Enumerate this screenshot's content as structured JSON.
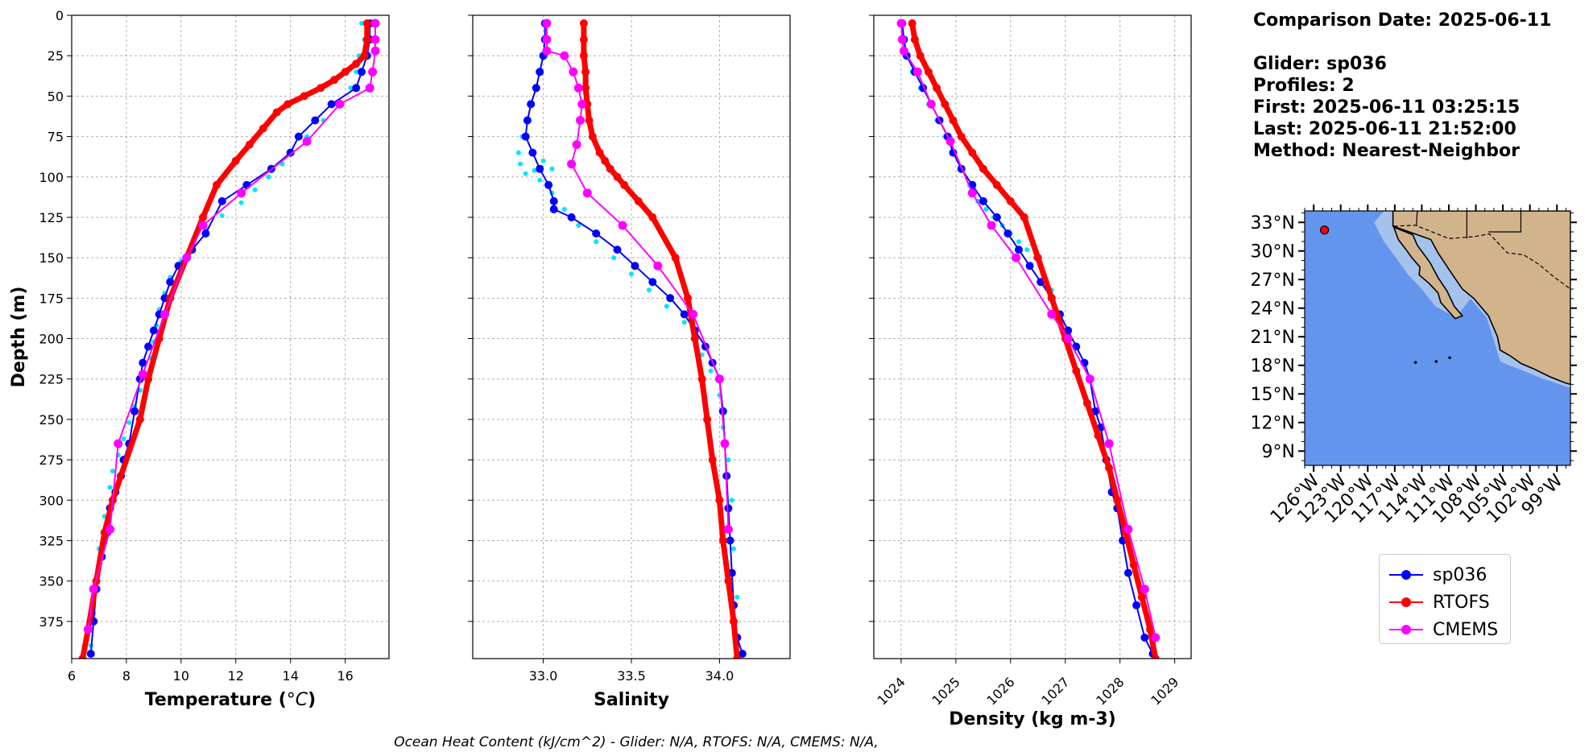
{
  "colors": {
    "glider": "#0000ff",
    "glider_raw": "#00e5ff",
    "rtofs": "#ff0000",
    "cmems": "#ff00ff",
    "ocean": "#6495ed",
    "shelf": "#a4c2ec",
    "land": "#d2b48c",
    "grid": "#b0b0b0"
  },
  "info": {
    "comparison_date": "Comparison Date: 2025-06-11",
    "glider": "Glider: sp036",
    "profiles": "Profiles: 2",
    "first": "First: 2025-06-11 03:25:15",
    "last": "Last: 2025-06-11 21:52:00",
    "method": "Method: Nearest-Neighbor"
  },
  "legend": [
    {
      "label": "sp036",
      "color": "#0000ff"
    },
    {
      "label": "RTOFS",
      "color": "#ff0000"
    },
    {
      "label": "CMEMS",
      "color": "#ff00ff"
    }
  ],
  "footnote": "Ocean Heat Content (kJ/cm^2) - Glider: N/A,  RTOFS: N/A,  CMEMS: N/A,",
  "chart_data": [
    {
      "type": "line",
      "xlabel": "Temperature (°C)",
      "ylabel": "Depth (m)",
      "xlim": [
        6,
        17.6
      ],
      "ylim": [
        0,
        398
      ],
      "y_inverted": true,
      "xticks": [
        6,
        8,
        10,
        12,
        14,
        16
      ],
      "yticks": [
        0,
        25,
        50,
        75,
        100,
        125,
        150,
        175,
        200,
        225,
        250,
        275,
        300,
        325,
        350,
        375
      ],
      "xtick_labels": [
        "6",
        "8",
        "10",
        "12",
        "14",
        "16"
      ],
      "grid": true,
      "series": [
        {
          "name": "glider_raw",
          "style": "dots",
          "x": [
            16.6,
            16.7,
            16.5,
            16.4,
            16.2,
            15.8,
            15.2,
            14.6,
            14.0,
            13.7,
            13.2,
            12.7,
            12.2,
            11.5,
            10.9,
            10.4,
            10.0,
            9.6,
            9.4,
            9.2,
            9.1,
            9.0,
            8.9,
            8.7,
            8.5,
            8.3,
            8.1,
            7.9,
            7.7,
            7.5,
            7.4,
            7.2,
            7.0,
            6.9,
            6.8,
            6.7
          ],
          "y": [
            5,
            15,
            25,
            35,
            45,
            55,
            65,
            75,
            85,
            92,
            100,
            108,
            116,
            124,
            132,
            142,
            152,
            162,
            172,
            182,
            192,
            202,
            212,
            222,
            232,
            242,
            252,
            262,
            272,
            282,
            292,
            310,
            330,
            350,
            370,
            390
          ]
        },
        {
          "name": "sp036",
          "style": "line-markers",
          "x": [
            16.9,
            16.9,
            16.8,
            16.6,
            16.4,
            15.5,
            14.9,
            14.3,
            14.0,
            13.3,
            12.4,
            11.5,
            10.9,
            10.4,
            9.9,
            9.6,
            9.4,
            9.2,
            9.0,
            8.8,
            8.6,
            8.5,
            8.3,
            8.1,
            7.9,
            7.8,
            7.6,
            7.4,
            7.3,
            7.1,
            6.9,
            6.8,
            6.7
          ],
          "y": [
            5,
            15,
            25,
            35,
            45,
            55,
            65,
            75,
            85,
            95,
            105,
            115,
            135,
            145,
            155,
            165,
            175,
            185,
            195,
            205,
            215,
            225,
            245,
            265,
            275,
            285,
            295,
            305,
            320,
            335,
            355,
            375,
            395
          ]
        },
        {
          "name": "RTOFS",
          "style": "thick-line-markers",
          "x": [
            16.8,
            16.8,
            16.7,
            16.4,
            16.0,
            15.6,
            15.1,
            14.5,
            13.9,
            13.5,
            13.0,
            12.5,
            12.0,
            11.3,
            10.8,
            10.2,
            9.6,
            9.2,
            8.8,
            8.5,
            7.5,
            7.2,
            6.9,
            6.6,
            6.4
          ],
          "y": [
            5,
            15,
            25,
            30,
            35,
            40,
            45,
            50,
            55,
            60,
            70,
            80,
            90,
            105,
            125,
            150,
            175,
            200,
            225,
            250,
            300,
            320,
            350,
            380,
            398
          ]
        },
        {
          "name": "CMEMS",
          "style": "line-markers",
          "x": [
            17.1,
            17.1,
            17.1,
            17.0,
            16.9,
            15.8,
            14.6,
            12.2,
            10.8,
            10.2,
            9.4,
            8.6,
            7.7,
            7.4,
            6.8,
            6.6
          ],
          "y": [
            5,
            15,
            22,
            35,
            45,
            55,
            78,
            110,
            130,
            150,
            185,
            222,
            265,
            318,
            355,
            380
          ]
        }
      ]
    },
    {
      "type": "line",
      "xlabel": "Salinity",
      "xlim": [
        32.6,
        34.4
      ],
      "ylim": [
        0,
        398
      ],
      "y_inverted": true,
      "xticks": [
        33.0,
        33.5,
        34.0
      ],
      "xtick_labels": [
        "33.0",
        "33.5",
        "34.0"
      ],
      "grid": true,
      "series": [
        {
          "name": "glider_raw",
          "style": "dots",
          "x": [
            33.0,
            33.0,
            32.99,
            32.97,
            32.95,
            32.93,
            32.91,
            32.88,
            32.86,
            32.87,
            32.9,
            32.95,
            33.0,
            33.05,
            32.98,
            33.05,
            33.12,
            33.2,
            33.3,
            33.4,
            33.5,
            33.6,
            33.7,
            33.8,
            33.85,
            33.9,
            33.95,
            34.0,
            34.02,
            34.05,
            34.07,
            34.08,
            34.1,
            34.1
          ],
          "y": [
            5,
            15,
            25,
            35,
            45,
            55,
            65,
            75,
            85,
            92,
            98,
            96,
            90,
            95,
            102,
            110,
            120,
            130,
            140,
            150,
            160,
            170,
            180,
            190,
            200,
            210,
            220,
            235,
            255,
            275,
            300,
            330,
            360,
            390
          ]
        },
        {
          "name": "sp036",
          "style": "line-markers",
          "x": [
            33.01,
            33.01,
            33.0,
            32.98,
            32.96,
            32.93,
            32.91,
            32.9,
            32.94,
            32.98,
            33.03,
            33.06,
            33.06,
            33.16,
            33.3,
            33.42,
            33.52,
            33.62,
            33.72,
            33.8,
            33.86,
            33.92,
            33.96,
            34.0,
            34.02,
            34.03,
            34.04,
            34.05,
            34.06,
            34.07,
            34.08,
            34.1,
            34.13
          ],
          "y": [
            5,
            15,
            25,
            35,
            45,
            55,
            65,
            75,
            85,
            95,
            105,
            115,
            120,
            125,
            135,
            145,
            155,
            165,
            175,
            185,
            195,
            205,
            215,
            225,
            245,
            265,
            285,
            305,
            325,
            345,
            365,
            385,
            395
          ]
        },
        {
          "name": "RTOFS",
          "style": "thick-line-markers",
          "x": [
            33.23,
            33.23,
            33.23,
            33.24,
            33.24,
            33.25,
            33.26,
            33.28,
            33.32,
            33.35,
            33.38,
            33.42,
            33.46,
            33.54,
            33.62,
            33.75,
            33.82,
            33.86,
            33.9,
            33.93,
            33.96,
            34.0,
            34.02,
            34.05,
            34.08,
            34.1
          ],
          "y": [
            5,
            15,
            25,
            35,
            45,
            55,
            65,
            75,
            85,
            90,
            95,
            100,
            105,
            115,
            125,
            150,
            175,
            200,
            225,
            250,
            275,
            300,
            325,
            350,
            375,
            398
          ]
        },
        {
          "name": "CMEMS",
          "style": "line-markers",
          "x": [
            33.02,
            33.02,
            33.02,
            33.12,
            33.17,
            33.2,
            33.22,
            33.21,
            33.19,
            33.16,
            33.25,
            33.45,
            33.65,
            33.85,
            34.0,
            34.03,
            34.05
          ],
          "y": [
            5,
            15,
            22,
            25,
            35,
            45,
            55,
            65,
            80,
            92,
            110,
            130,
            155,
            185,
            225,
            265,
            318
          ]
        }
      ]
    },
    {
      "type": "line",
      "xlabel": "Density (kg m-3)",
      "xlim": [
        1023.5,
        1029.3
      ],
      "ylim": [
        0,
        398
      ],
      "y_inverted": true,
      "xticks": [
        1024,
        1025,
        1026,
        1027,
        1028,
        1029
      ],
      "xtick_labels": [
        "1024",
        "1025",
        "1026",
        "1027",
        "1028",
        "1029"
      ],
      "grid": true,
      "series": [
        {
          "name": "glider_raw",
          "style": "dots",
          "x": [
            1024.0,
            1024.05,
            1024.1,
            1024.2,
            1024.35,
            1024.5,
            1024.65,
            1024.8,
            1024.95,
            1025.1,
            1025.25,
            1025.4,
            1025.55,
            1025.7,
            1025.85,
            1026.0,
            1026.15,
            1026.3,
            1026.45,
            1026.6,
            1026.75,
            1026.9
          ],
          "y": [
            5,
            15,
            25,
            35,
            45,
            55,
            65,
            75,
            85,
            95,
            105,
            115,
            120,
            125,
            130,
            135,
            140,
            145,
            150,
            160,
            170,
            185
          ]
        },
        {
          "name": "sp036",
          "style": "line-markers",
          "x": [
            1024.02,
            1024.05,
            1024.1,
            1024.25,
            1024.4,
            1024.55,
            1024.7,
            1024.85,
            1024.95,
            1025.1,
            1025.3,
            1025.5,
            1025.75,
            1025.95,
            1026.15,
            1026.35,
            1026.55,
            1026.75,
            1026.9,
            1027.05,
            1027.2,
            1027.35,
            1027.45,
            1027.55,
            1027.65,
            1027.75,
            1027.85,
            1027.95,
            1028.05,
            1028.15,
            1028.3,
            1028.45,
            1028.6
          ],
          "y": [
            5,
            15,
            25,
            35,
            45,
            55,
            65,
            75,
            85,
            95,
            105,
            115,
            125,
            135,
            145,
            155,
            165,
            175,
            185,
            195,
            205,
            215,
            225,
            245,
            255,
            275,
            295,
            305,
            325,
            345,
            365,
            385,
            395
          ]
        },
        {
          "name": "RTOFS",
          "style": "thick-line-markers",
          "x": [
            1024.2,
            1024.25,
            1024.35,
            1024.5,
            1024.65,
            1024.8,
            1024.95,
            1025.1,
            1025.3,
            1025.5,
            1025.75,
            1026.0,
            1026.25,
            1026.5,
            1026.75,
            1027.0,
            1027.2,
            1027.4,
            1027.6,
            1027.8,
            1027.95,
            1028.1,
            1028.25,
            1028.4,
            1028.55,
            1028.65
          ],
          "y": [
            5,
            15,
            25,
            35,
            45,
            55,
            65,
            75,
            85,
            95,
            105,
            115,
            125,
            150,
            175,
            200,
            220,
            240,
            260,
            280,
            300,
            320,
            340,
            360,
            380,
            398
          ]
        },
        {
          "name": "CMEMS",
          "style": "line-markers",
          "x": [
            1024.0,
            1024.02,
            1024.05,
            1024.3,
            1024.55,
            1024.9,
            1025.3,
            1025.65,
            1026.1,
            1026.75,
            1027.05,
            1027.45,
            1027.8,
            1028.15,
            1028.45,
            1028.65
          ],
          "y": [
            5,
            15,
            22,
            35,
            55,
            78,
            110,
            130,
            150,
            185,
            200,
            225,
            265,
            318,
            355,
            385
          ]
        }
      ]
    },
    {
      "type": "map",
      "lat_labels": [
        "33°N",
        "30°N",
        "27°N",
        "24°N",
        "21°N",
        "18°N",
        "15°N",
        "12°N",
        "9°N"
      ],
      "lon_labels": [
        "126°W",
        "123°W",
        "120°W",
        "117°W",
        "114°W",
        "111°W",
        "108°W",
        "105°W",
        "102°W",
        "99°W"
      ],
      "extent": {
        "lon": [
          -127,
          -97.5
        ],
        "lat": [
          7.5,
          34.2
        ]
      },
      "glider_position": {
        "lon": -124.8,
        "lat": 32.2
      }
    }
  ]
}
